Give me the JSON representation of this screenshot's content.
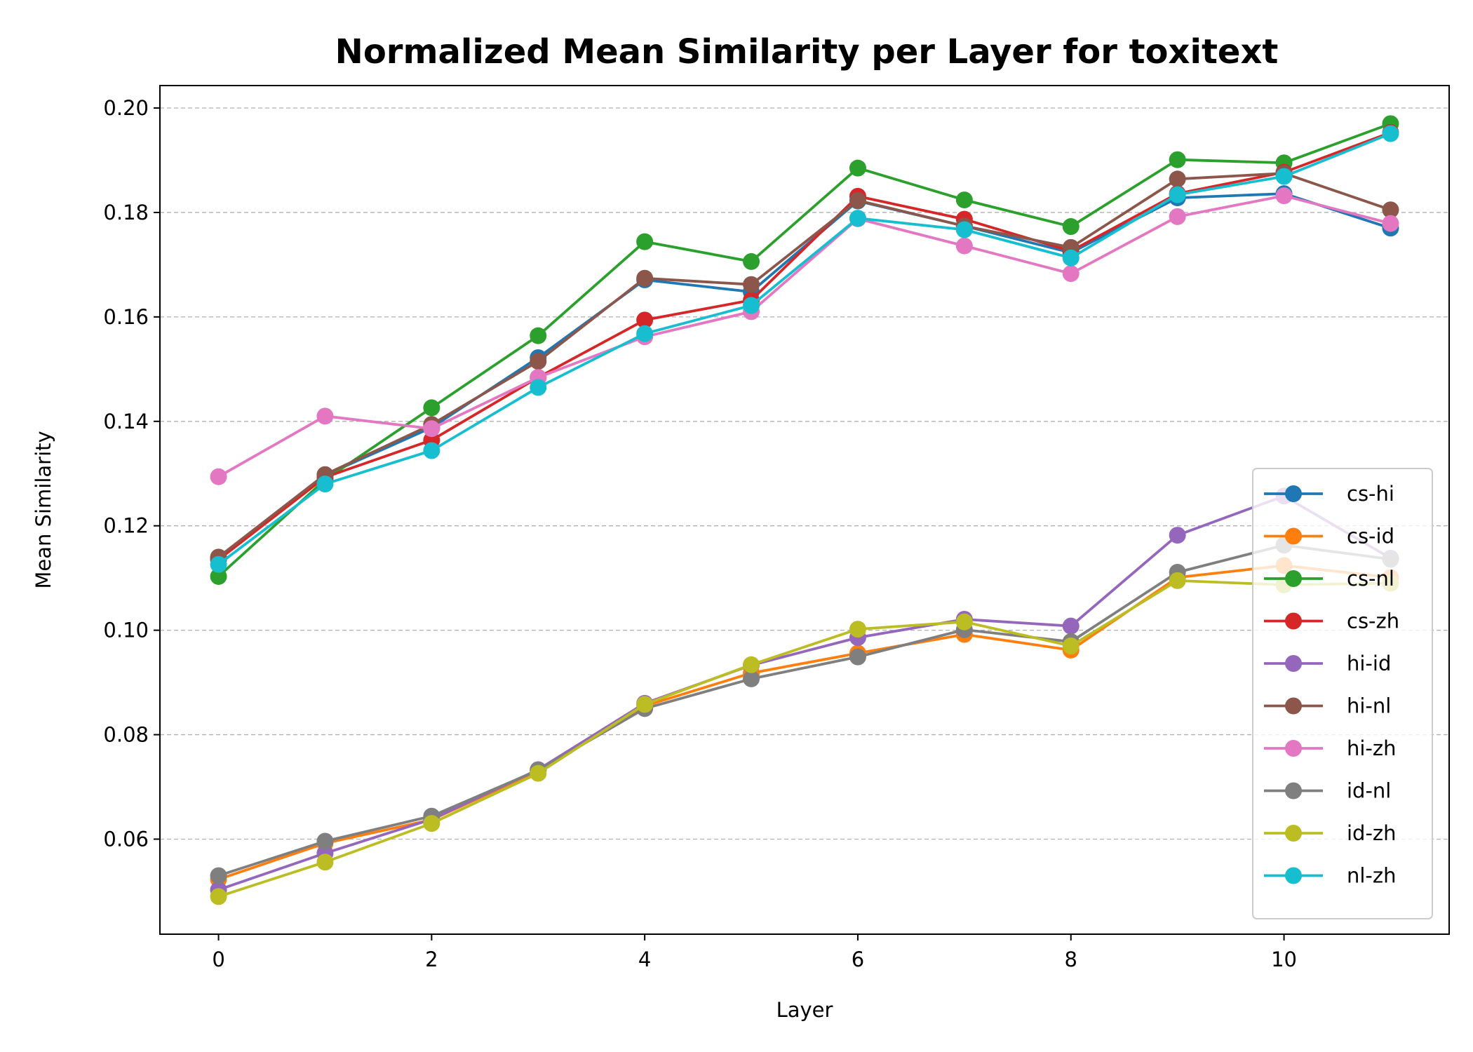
{
  "chart_data": {
    "type": "line",
    "title": "Normalized Mean Similarity per Layer for toxitext",
    "xlabel": "Layer",
    "ylabel": "Mean Similarity",
    "x": [
      0,
      1,
      2,
      3,
      4,
      5,
      6,
      7,
      8,
      9,
      10,
      11
    ],
    "xlim": [
      -0.55,
      11.55
    ],
    "ylim": [
      0.0418,
      0.2043
    ],
    "xticks": [
      0,
      2,
      4,
      6,
      8,
      10
    ],
    "xtick_labels": [
      "0",
      "2",
      "4",
      "6",
      "8",
      "10"
    ],
    "yticks": [
      0.06,
      0.08,
      0.1,
      0.12,
      0.14,
      0.16,
      0.18,
      0.2
    ],
    "ytick_labels": [
      "0.06",
      "0.08",
      "0.10",
      "0.12",
      "0.14",
      "0.16",
      "0.18",
      "0.20"
    ],
    "grid": "y-dashed",
    "legend_position": "lower-right",
    "series": [
      {
        "name": "cs-hi",
        "color": "#1f77b4",
        "values": [
          0.1138,
          0.1297,
          0.1388,
          0.1522,
          0.1671,
          0.1648,
          0.1822,
          0.1774,
          0.1723,
          0.1828,
          0.1836,
          0.177
        ]
      },
      {
        "name": "cs-id",
        "color": "#ff7f0e",
        "values": [
          0.0523,
          0.0592,
          0.0637,
          0.073,
          0.0855,
          0.0918,
          0.0956,
          0.0992,
          0.0962,
          0.1101,
          0.1124,
          0.1101
        ]
      },
      {
        "name": "cs-nl",
        "color": "#2ca02c",
        "values": [
          0.1103,
          0.1288,
          0.1426,
          0.1564,
          0.1744,
          0.1706,
          0.1885,
          0.1824,
          0.1773,
          0.1901,
          0.1895,
          0.197
        ]
      },
      {
        "name": "cs-zh",
        "color": "#d62728",
        "values": [
          0.1135,
          0.1293,
          0.1364,
          0.1484,
          0.1594,
          0.1632,
          0.1831,
          0.1787,
          0.1726,
          0.1836,
          0.1877,
          0.1953
        ]
      },
      {
        "name": "hi-id",
        "color": "#9467bd",
        "values": [
          0.0503,
          0.0573,
          0.0638,
          0.0733,
          0.086,
          0.0933,
          0.0986,
          0.1021,
          0.1008,
          0.1182,
          0.1257,
          0.1138
        ]
      },
      {
        "name": "hi-nl",
        "color": "#8c564b",
        "values": [
          0.114,
          0.1298,
          0.1394,
          0.1515,
          0.1674,
          0.1662,
          0.1823,
          0.1774,
          0.1733,
          0.1864,
          0.1875,
          0.1805
        ]
      },
      {
        "name": "hi-zh",
        "color": "#e377c2",
        "values": [
          0.1294,
          0.141,
          0.1386,
          0.1484,
          0.1562,
          0.161,
          0.1788,
          0.1736,
          0.1683,
          0.1792,
          0.1832,
          0.1779
        ]
      },
      {
        "name": "id-nl",
        "color": "#7f7f7f",
        "values": [
          0.053,
          0.0596,
          0.0644,
          0.0732,
          0.085,
          0.0907,
          0.0949,
          0.1001,
          0.0978,
          0.1111,
          0.1163,
          0.1136
        ]
      },
      {
        "name": "id-zh",
        "color": "#bcbd22",
        "values": [
          0.049,
          0.0556,
          0.063,
          0.0726,
          0.0858,
          0.0934,
          0.1002,
          0.1016,
          0.097,
          0.1095,
          0.1087,
          0.109
        ]
      },
      {
        "name": "nl-zh",
        "color": "#17becf",
        "values": [
          0.1126,
          0.128,
          0.1344,
          0.1465,
          0.1568,
          0.1622,
          0.1789,
          0.1767,
          0.1713,
          0.1834,
          0.1869,
          0.1951
        ]
      }
    ]
  }
}
